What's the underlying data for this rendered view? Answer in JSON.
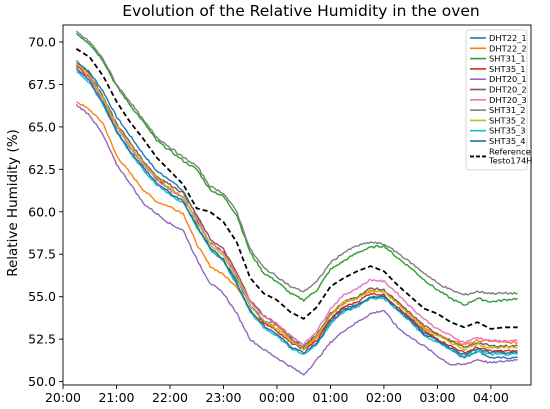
{
  "chart_data": {
    "type": "line",
    "title": "Evolution of the Relative Humidity in the oven",
    "xlabel": "",
    "ylabel": "Relative Humidity (%)",
    "xlim": [
      "20:00",
      "04:45"
    ],
    "ylim": [
      49.8,
      71.0
    ],
    "x_ticks": [
      "20:00",
      "21:00",
      "22:00",
      "23:00",
      "00:00",
      "01:00",
      "02:00",
      "03:00",
      "04:00"
    ],
    "y_ticks": [
      "50.0",
      "52.5",
      "55.0",
      "57.5",
      "60.0",
      "62.5",
      "65.0",
      "67.5",
      "70.0"
    ],
    "grid": false,
    "legend_position": "top-right",
    "x": [
      "20:15",
      "20:30",
      "20:45",
      "21:00",
      "21:15",
      "21:30",
      "21:45",
      "22:00",
      "22:15",
      "22:30",
      "22:45",
      "23:00",
      "23:15",
      "23:30",
      "23:45",
      "00:00",
      "00:15",
      "00:30",
      "00:45",
      "01:00",
      "01:15",
      "01:30",
      "01:45",
      "02:00",
      "02:15",
      "02:30",
      "02:45",
      "03:00",
      "03:15",
      "03:30",
      "03:45",
      "04:00",
      "04:15",
      "04:30"
    ],
    "series": [
      {
        "name": "DHT22_1",
        "color": "#1f77b4",
        "dash": "solid",
        "values": [
          68.9,
          68.2,
          67.1,
          65.6,
          64.5,
          63.4,
          62.4,
          61.9,
          61.2,
          59.8,
          57.8,
          57.1,
          56.0,
          54.5,
          53.6,
          53.4,
          52.6,
          52.0,
          52.7,
          53.7,
          54.3,
          54.5,
          54.9,
          55.0,
          54.3,
          53.7,
          52.9,
          52.5,
          51.9,
          51.4,
          51.8,
          51.4,
          51.4,
          51.4
        ]
      },
      {
        "name": "DHT22_2",
        "color": "#ff7f0e",
        "dash": "solid",
        "values": [
          66.5,
          66.0,
          65.2,
          63.3,
          62.3,
          61.3,
          60.6,
          60.3,
          59.9,
          58.1,
          56.8,
          56.3,
          55.6,
          54.2,
          53.4,
          53.3,
          52.5,
          51.9,
          52.6,
          53.9,
          54.6,
          54.9,
          55.4,
          55.3,
          54.7,
          53.9,
          53.2,
          52.8,
          52.4,
          52.2,
          52.4,
          52.4,
          52.3,
          52.3
        ]
      },
      {
        "name": "SHT31_1",
        "color": "#2ca02c",
        "dash": "solid",
        "values": [
          70.5,
          69.9,
          68.9,
          67.4,
          66.3,
          65.3,
          64.2,
          63.6,
          63.0,
          62.5,
          61.3,
          60.9,
          59.8,
          57.6,
          56.4,
          55.9,
          55.2,
          54.8,
          55.4,
          56.6,
          57.1,
          57.6,
          57.9,
          58.0,
          57.3,
          56.7,
          56.0,
          55.4,
          54.9,
          54.5,
          54.9,
          54.7,
          54.8,
          54.9
        ]
      },
      {
        "name": "SHT35_1",
        "color": "#d62728",
        "dash": "solid",
        "values": [
          68.6,
          67.9,
          66.6,
          65.0,
          63.8,
          62.8,
          62.0,
          61.3,
          60.8,
          59.5,
          58.2,
          57.6,
          56.2,
          54.5,
          53.5,
          53.0,
          52.3,
          51.9,
          52.4,
          53.7,
          54.4,
          54.7,
          55.2,
          55.1,
          54.4,
          53.7,
          53.0,
          52.5,
          52.1,
          51.7,
          52.0,
          51.8,
          51.8,
          51.8
        ]
      },
      {
        "name": "DHT20_1",
        "color": "#9467bd",
        "dash": "solid",
        "values": [
          66.3,
          65.7,
          64.5,
          62.8,
          61.7,
          60.5,
          59.9,
          59.3,
          58.9,
          57.2,
          55.8,
          55.2,
          54.0,
          52.5,
          51.9,
          51.4,
          50.9,
          50.4,
          51.3,
          52.3,
          53.0,
          53.5,
          54.0,
          54.2,
          53.2,
          52.6,
          52.1,
          51.5,
          51.0,
          51.0,
          51.3,
          51.1,
          51.2,
          51.3
        ]
      },
      {
        "name": "DHT20_2",
        "color": "#8c564b",
        "dash": "solid",
        "values": [
          68.8,
          68.1,
          66.8,
          65.2,
          64.1,
          63.0,
          62.1,
          61.6,
          61.1,
          59.8,
          58.4,
          57.8,
          56.4,
          54.8,
          53.9,
          53.4,
          52.7,
          52.1,
          52.8,
          54.0,
          54.7,
          55.0,
          55.5,
          55.4,
          54.7,
          54.0,
          53.3,
          52.8,
          52.4,
          52.0,
          52.3,
          52.1,
          52.1,
          52.1
        ]
      },
      {
        "name": "DHT20_3",
        "color": "#e377c2",
        "dash": "solid",
        "values": [
          68.5,
          67.8,
          66.6,
          65.0,
          63.8,
          62.8,
          61.9,
          61.3,
          60.8,
          59.6,
          58.2,
          57.6,
          56.3,
          54.7,
          53.8,
          53.4,
          52.7,
          52.2,
          53.0,
          54.3,
          55.1,
          55.5,
          56.0,
          55.9,
          55.2,
          54.4,
          53.7,
          53.1,
          52.7,
          52.3,
          52.6,
          52.4,
          52.4,
          52.4
        ]
      },
      {
        "name": "SHT31_2",
        "color": "#7f7f7f",
        "dash": "solid",
        "values": [
          70.6,
          70.0,
          69.0,
          67.5,
          66.5,
          65.4,
          64.4,
          63.8,
          63.2,
          62.7,
          61.5,
          61.1,
          60.0,
          57.8,
          56.7,
          56.2,
          55.6,
          55.3,
          55.9,
          57.0,
          57.6,
          58.0,
          58.2,
          58.1,
          57.6,
          57.0,
          56.4,
          55.8,
          55.4,
          55.1,
          55.3,
          55.2,
          55.2,
          55.2
        ]
      },
      {
        "name": "SHT35_2",
        "color": "#bcbd22",
        "dash": "solid",
        "values": [
          68.7,
          68.0,
          66.7,
          65.1,
          63.9,
          62.9,
          62.0,
          61.4,
          60.9,
          59.4,
          58.1,
          57.4,
          56.1,
          54.5,
          53.6,
          53.1,
          52.4,
          51.9,
          52.7,
          53.9,
          54.7,
          54.9,
          55.3,
          55.3,
          54.6,
          53.9,
          53.1,
          52.7,
          52.3,
          51.9,
          52.2,
          52.0,
          52.0,
          52.0
        ]
      },
      {
        "name": "SHT35_3",
        "color": "#17becf",
        "dash": "solid",
        "values": [
          68.3,
          67.6,
          66.3,
          64.7,
          63.5,
          62.5,
          61.6,
          61.0,
          60.5,
          59.1,
          57.8,
          57.1,
          55.7,
          54.1,
          53.2,
          52.7,
          52.0,
          51.6,
          52.2,
          53.4,
          54.1,
          54.4,
          54.9,
          54.9,
          54.2,
          53.5,
          52.7,
          52.3,
          51.9,
          51.5,
          51.8,
          51.6,
          51.6,
          51.6
        ]
      },
      {
        "name": "SHT35_4",
        "color": "#2c6e91",
        "dash": "solid",
        "values": [
          68.4,
          67.7,
          66.4,
          64.8,
          63.6,
          62.6,
          61.7,
          61.1,
          60.6,
          59.2,
          57.9,
          57.2,
          55.8,
          54.2,
          53.3,
          52.8,
          52.1,
          51.7,
          52.3,
          53.5,
          54.2,
          54.5,
          55.0,
          55.0,
          54.3,
          53.6,
          52.8,
          52.4,
          52.0,
          51.6,
          51.9,
          51.7,
          51.7,
          51.7
        ]
      },
      {
        "name": "Reference Testo174H",
        "color": "#000000",
        "dash": "dashed",
        "values": [
          69.6,
          69.1,
          68.0,
          66.5,
          65.3,
          64.3,
          63.2,
          62.4,
          61.6,
          60.2,
          60.0,
          59.4,
          58.2,
          56.1,
          55.2,
          54.8,
          54.1,
          53.7,
          54.4,
          55.6,
          56.1,
          56.5,
          56.8,
          56.5,
          55.7,
          55.0,
          54.3,
          54.0,
          53.5,
          53.2,
          53.5,
          53.1,
          53.2,
          53.2
        ]
      }
    ]
  }
}
